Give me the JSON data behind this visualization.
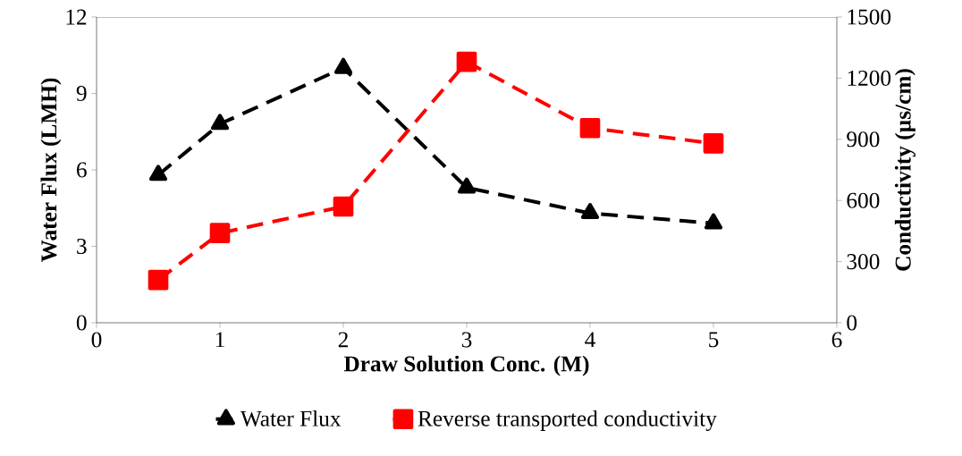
{
  "chart_data": {
    "type": "line",
    "xlabel": "Draw Solution Conc. (M)",
    "ylabel": "Water Flux (LMH)",
    "y2label": "Conductivity (µs/cm)",
    "xlim": [
      0,
      6
    ],
    "xticks": [
      0,
      1,
      2,
      3,
      4,
      5,
      6
    ],
    "ylim": [
      0,
      12
    ],
    "yticks": [
      0,
      3,
      6,
      9,
      12
    ],
    "y2lim": [
      0,
      1500
    ],
    "y2ticks": [
      0,
      300,
      600,
      900,
      1200,
      1500
    ],
    "x": [
      0.5,
      1,
      2,
      3,
      4,
      5
    ],
    "legend": "bottom",
    "grid": false,
    "series": [
      {
        "name": "Water Flux",
        "color": "#000000",
        "marker": "triangle",
        "line_style": "dashed",
        "axis": "y",
        "values": [
          5.8,
          7.8,
          10.0,
          5.3,
          4.3,
          3.9
        ]
      },
      {
        "name": "Reverse transported conductivity",
        "color": "#ff0000",
        "marker": "square",
        "line_style": "dashed",
        "axis": "y2",
        "values": [
          210,
          440,
          570,
          1280,
          955,
          880
        ]
      }
    ]
  }
}
